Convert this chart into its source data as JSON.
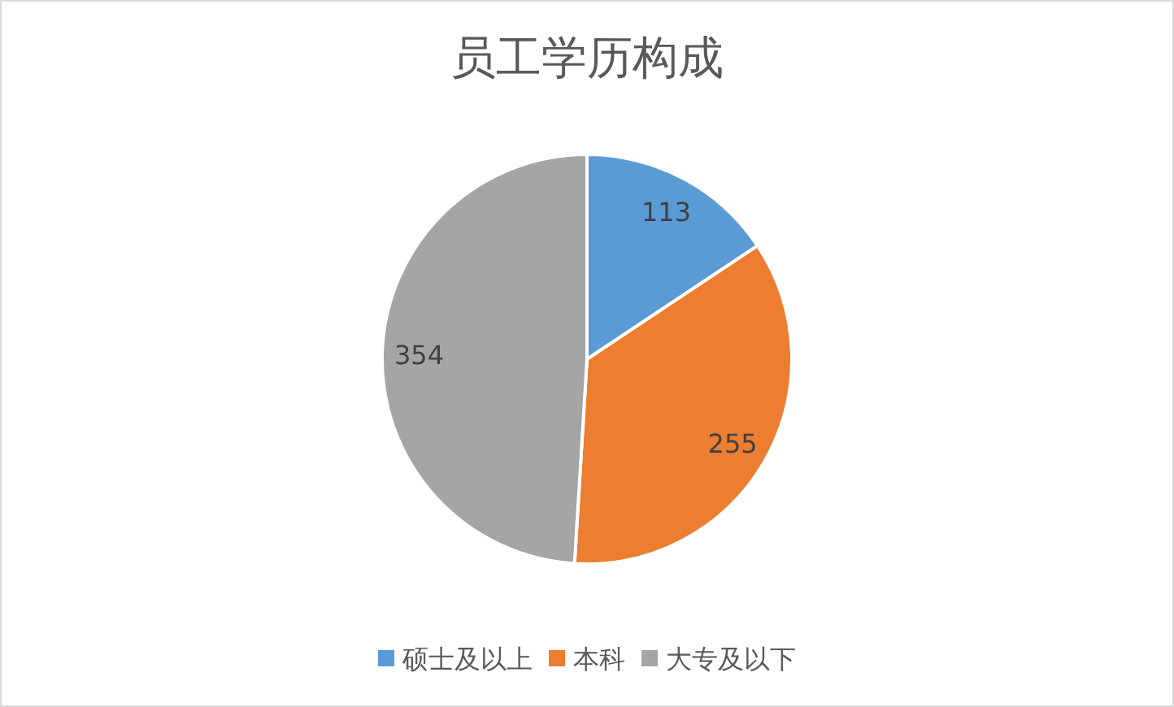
{
  "chart_data": {
    "type": "pie",
    "title": "员工学历构成",
    "categories": [
      "硕士及以上",
      "本科",
      "大专及以下"
    ],
    "values": [
      113,
      255,
      354
    ],
    "colors": [
      "#5b9bd5",
      "#ed7d31",
      "#a5a5a5"
    ],
    "data_labels": true,
    "legend": "bottom"
  }
}
